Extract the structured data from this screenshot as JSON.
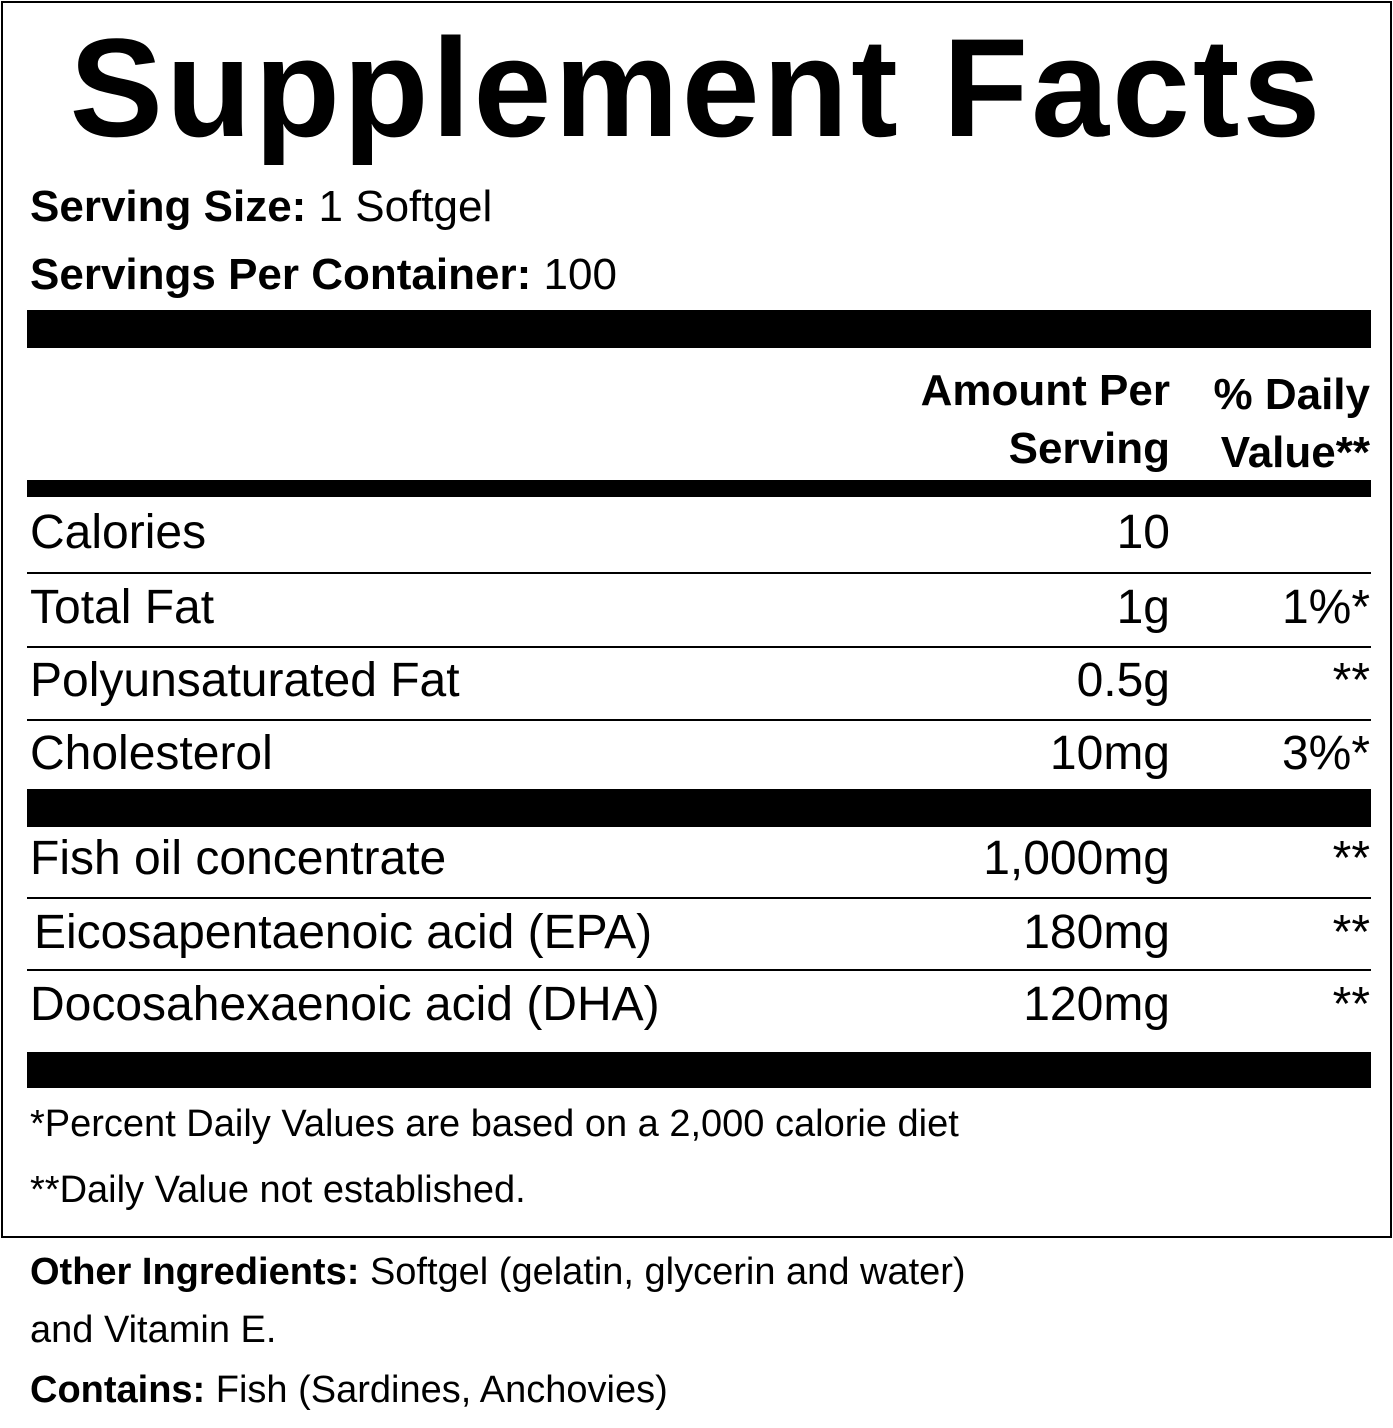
{
  "title": "Supplement Facts",
  "serving_size": {
    "label": "Serving Size:",
    "value": "1 Softgel"
  },
  "servings_per_container": {
    "label": "Servings Per Container:",
    "value": "100"
  },
  "columns": {
    "amount_line1": "Amount Per",
    "amount_line2": "Serving",
    "dv_line1": "% Daily",
    "dv_line2": "Value**"
  },
  "rows": [
    {
      "name": "Calories",
      "amount": "10",
      "dv": ""
    },
    {
      "name": "Total Fat",
      "amount": "1g",
      "dv": "1%*"
    },
    {
      "name": "Polyunsaturated Fat",
      "amount": "0.5g",
      "dv": "**"
    },
    {
      "name": "Cholesterol",
      "amount": "10mg",
      "dv": "3%*"
    },
    {
      "name": "Fish oil concentrate",
      "amount": "1,000mg",
      "dv": "**"
    },
    {
      "name": "Eicosapentaenoic acid (EPA)",
      "amount": "180mg",
      "dv": "**"
    },
    {
      "name": "Docosahexaenoic acid (DHA)",
      "amount": "120mg",
      "dv": "**"
    }
  ],
  "footnotes": [
    "*Percent Daily Values are based on a 2,000 calorie diet",
    "**Daily Value not established."
  ],
  "other_ingredients": {
    "label": "Other Ingredients:",
    "line1": "Softgel (gelatin, glycerin and water)",
    "line2": "and Vitamin E."
  },
  "contains": {
    "label": "Contains:",
    "value": "Fish (Sardines, Anchovies)"
  }
}
